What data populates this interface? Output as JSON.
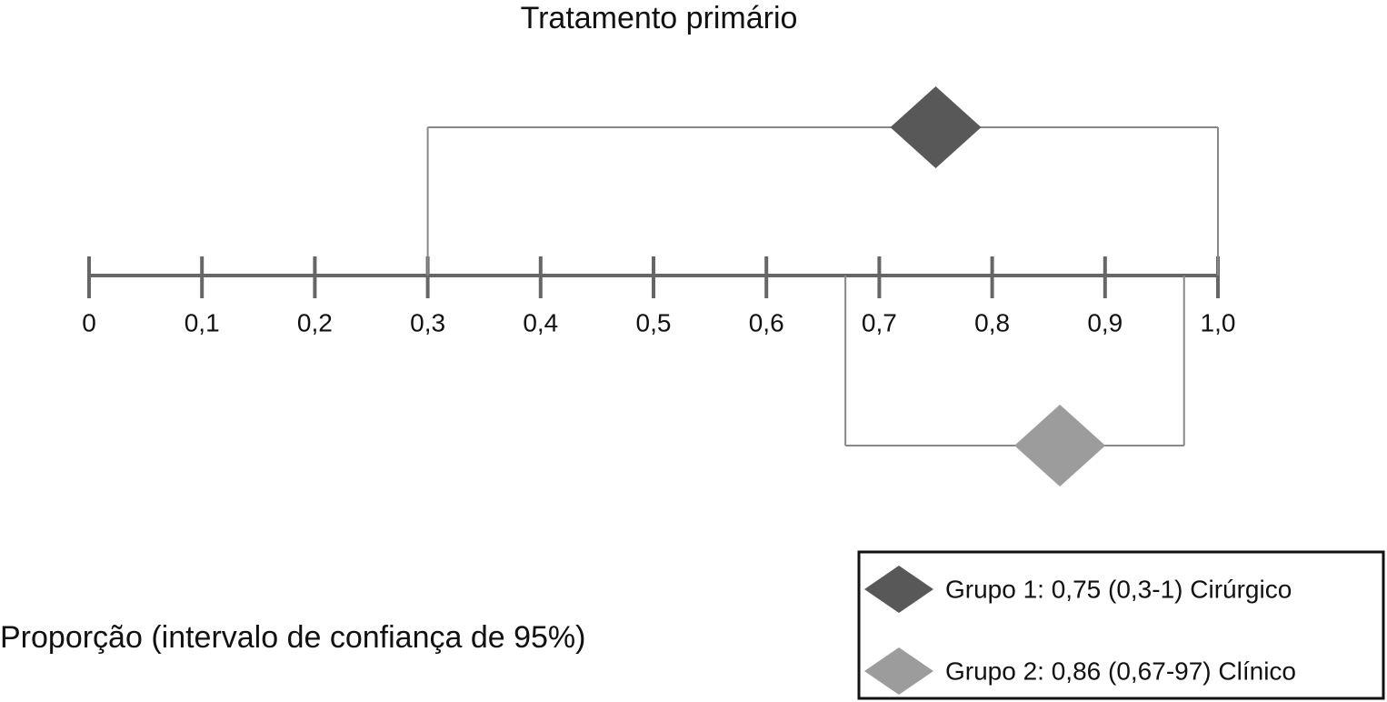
{
  "chart_data": {
    "type": "interval",
    "title": "Tratamento primário",
    "x_label": "Proporção (intervalo de confiança de 95%)",
    "xlim": [
      0,
      1
    ],
    "xticks": [
      0,
      {
        "value": 0.1,
        "label": "0,1"
      },
      {
        "value": 0.2,
        "label": "0,2"
      },
      {
        "value": 0.3,
        "label": "0,3"
      },
      {
        "value": 0.4,
        "label": "0,4"
      },
      {
        "value": 0.5,
        "label": "0,5"
      },
      {
        "value": 0.6,
        "label": "0,6"
      },
      {
        "value": 0.7,
        "label": "0,7"
      },
      {
        "value": 0.8,
        "label": "0,8"
      },
      {
        "value": 0.9,
        "label": "0,9"
      },
      {
        "value": 1,
        "label": "1,0"
      }
    ],
    "series": [
      {
        "name": "Grupo 1: 0,75 (0,3-1) Cirúrgico",
        "color": "#585858",
        "value": 0.75,
        "ci_low": 0.3,
        "ci_high": 1
      },
      {
        "name": "Grupo 2: 0,86 (0,67-97) Clínico",
        "color": "#9c9c9c",
        "value": 0.86,
        "ci_low": 0.67,
        "ci_high": 0.97
      }
    ],
    "legend": "bottom-right"
  }
}
